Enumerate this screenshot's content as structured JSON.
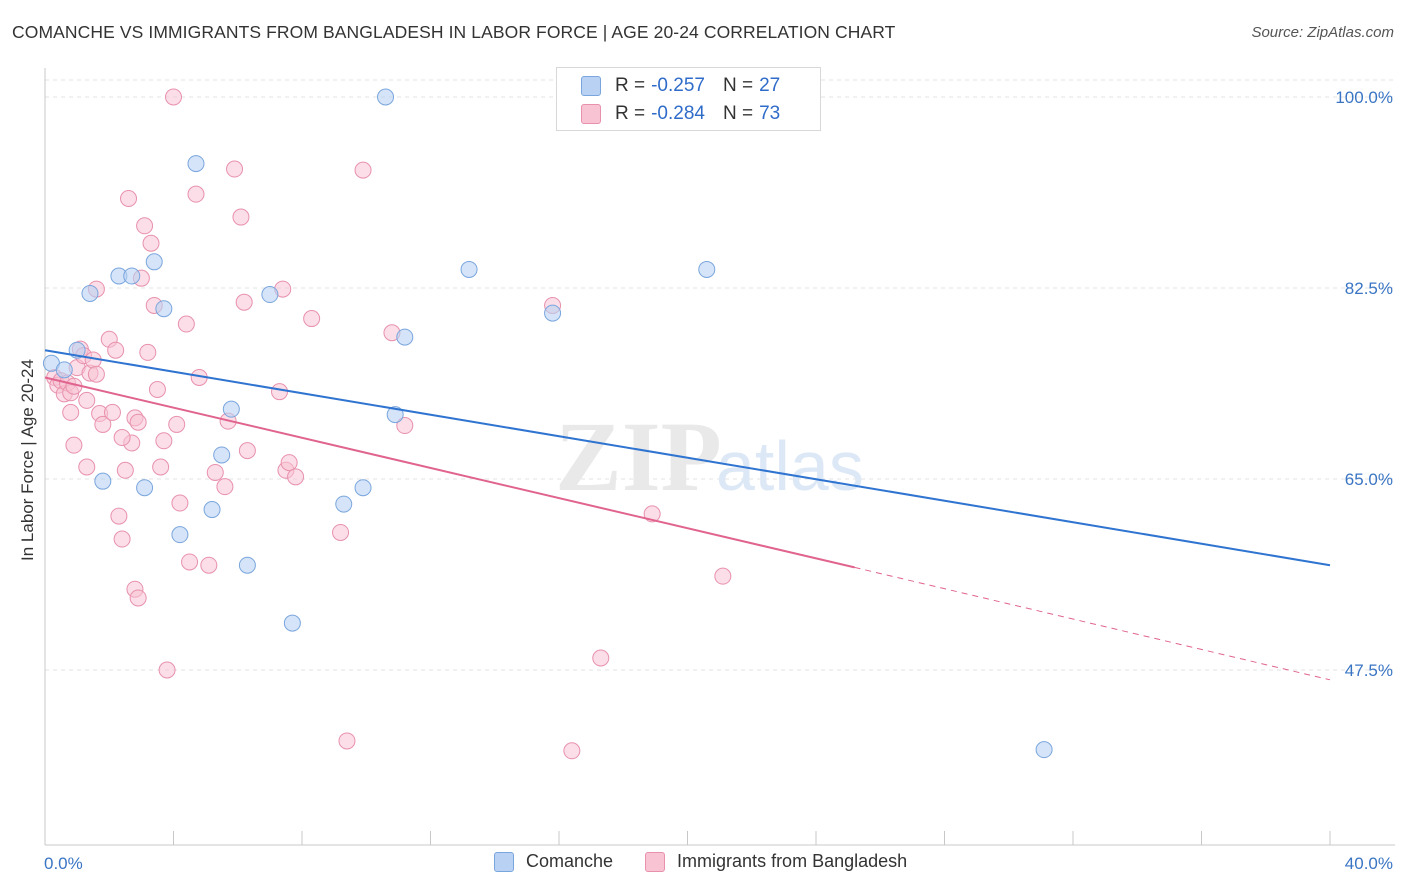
{
  "title": "COMANCHE VS IMMIGRANTS FROM BANGLADESH IN LABOR FORCE | AGE 20-24 CORRELATION CHART",
  "source": "Source: ZipAtlas.com",
  "watermark": {
    "zip": "ZIP",
    "atlas": "atlas"
  },
  "colors": {
    "blue_fill": "#b9d2f3",
    "blue_stroke": "#7aa6dd",
    "blue_line": "#2f74d0",
    "pink_fill": "#f8c3d3",
    "pink_stroke": "#e891ad",
    "pink_line": "#e0648e",
    "axis_text": "#3a75c4",
    "grid": "#e3e3e3"
  },
  "legend": {
    "rows": [
      {
        "series": "Comanche",
        "r_label": "R = ",
        "r_value": "-0.257",
        "n_label": "N = ",
        "n_value": "27"
      },
      {
        "series": "Immigrants from Bangladesh",
        "r_label": "R = ",
        "r_value": "-0.284",
        "n_label": "N = ",
        "n_value": "73"
      }
    ]
  },
  "bottom_legend": [
    "Comanche",
    "Immigrants from Bangladesh"
  ],
  "chart_data": {
    "type": "scatter",
    "title": "COMANCHE VS IMMIGRANTS FROM BANGLADESH IN LABOR FORCE | AGE 20-24 CORRELATION CHART",
    "xlabel": "",
    "ylabel": "In Labor Force | Age 20-24",
    "xlim": [
      0,
      40
    ],
    "ylim": [
      33.5,
      102.2
    ],
    "x_tick_labels": [
      "0.0%",
      "40.0%"
    ],
    "y_ticks": [
      47.5,
      65.0,
      82.5,
      100.0
    ],
    "y_tick_labels": [
      "47.5%",
      "65.0%",
      "82.5%",
      "100.0%"
    ],
    "grid": true,
    "series": [
      {
        "name": "Comanche",
        "r": -0.257,
        "n": 27,
        "trend": {
          "x0": 0,
          "y0": 76.8,
          "x1": 40,
          "y1": 57.1
        },
        "points": [
          [
            0.2,
            75.6
          ],
          [
            1.0,
            76.8
          ],
          [
            1.4,
            82.0
          ],
          [
            1.8,
            64.8
          ],
          [
            2.3,
            83.6
          ],
          [
            2.7,
            83.6
          ],
          [
            3.1,
            64.2
          ],
          [
            3.4,
            84.9
          ],
          [
            3.7,
            80.6
          ],
          [
            4.2,
            59.9
          ],
          [
            4.7,
            93.9
          ],
          [
            5.2,
            62.2
          ],
          [
            5.5,
            67.2
          ],
          [
            5.8,
            71.4
          ],
          [
            6.3,
            57.1
          ],
          [
            7.0,
            81.9
          ],
          [
            7.7,
            51.8
          ],
          [
            9.3,
            62.7
          ],
          [
            9.9,
            64.2
          ],
          [
            10.6,
            100.0
          ],
          [
            10.9,
            70.9
          ],
          [
            11.2,
            78.0
          ],
          [
            13.2,
            84.2
          ],
          [
            15.8,
            80.2
          ],
          [
            20.6,
            84.2
          ],
          [
            31.1,
            40.2
          ],
          [
            0.6,
            75.0
          ]
        ]
      },
      {
        "name": "Immigrants from Bangladesh",
        "r": -0.284,
        "n": 73,
        "trend": {
          "x0": 0,
          "y0": 74.3,
          "x1": 25.2,
          "y1": 56.9
        },
        "trend_dashed": {
          "x0": 25.2,
          "y0": 56.9,
          "x1": 40,
          "y1": 46.6
        },
        "points": [
          [
            0.3,
            74.3
          ],
          [
            0.4,
            73.6
          ],
          [
            0.5,
            74.0
          ],
          [
            0.6,
            72.8
          ],
          [
            0.7,
            73.8
          ],
          [
            0.8,
            72.9
          ],
          [
            0.8,
            71.1
          ],
          [
            0.9,
            68.1
          ],
          [
            1.0,
            75.2
          ],
          [
            1.1,
            76.9
          ],
          [
            1.2,
            76.3
          ],
          [
            1.3,
            66.1
          ],
          [
            1.3,
            72.2
          ],
          [
            1.4,
            74.7
          ],
          [
            1.5,
            75.9
          ],
          [
            1.6,
            82.4
          ],
          [
            1.7,
            71.0
          ],
          [
            1.8,
            70.0
          ],
          [
            2.0,
            77.8
          ],
          [
            2.1,
            71.1
          ],
          [
            2.2,
            76.8
          ],
          [
            2.3,
            61.6
          ],
          [
            2.4,
            59.5
          ],
          [
            2.5,
            65.8
          ],
          [
            2.6,
            90.7
          ],
          [
            2.7,
            68.3
          ],
          [
            2.8,
            70.6
          ],
          [
            2.9,
            70.2
          ],
          [
            2.8,
            54.9
          ],
          [
            2.9,
            54.1
          ],
          [
            3.0,
            83.4
          ],
          [
            3.1,
            88.2
          ],
          [
            3.2,
            76.6
          ],
          [
            3.3,
            86.6
          ],
          [
            3.4,
            80.9
          ],
          [
            3.5,
            73.2
          ],
          [
            3.6,
            66.1
          ],
          [
            3.7,
            68.5
          ],
          [
            3.8,
            47.5
          ],
          [
            4.0,
            100.0
          ],
          [
            4.1,
            70.0
          ],
          [
            4.2,
            62.8
          ],
          [
            4.4,
            79.2
          ],
          [
            4.5,
            57.4
          ],
          [
            4.7,
            91.1
          ],
          [
            4.8,
            74.3
          ],
          [
            5.1,
            57.1
          ],
          [
            5.3,
            65.6
          ],
          [
            5.6,
            64.3
          ],
          [
            5.7,
            70.3
          ],
          [
            5.9,
            93.4
          ],
          [
            6.1,
            89.0
          ],
          [
            6.2,
            81.2
          ],
          [
            6.3,
            67.6
          ],
          [
            7.3,
            73.0
          ],
          [
            7.4,
            82.4
          ],
          [
            7.5,
            65.8
          ],
          [
            7.6,
            66.5
          ],
          [
            7.8,
            65.2
          ],
          [
            8.3,
            79.7
          ],
          [
            9.2,
            60.1
          ],
          [
            9.4,
            41.0
          ],
          [
            9.9,
            93.3
          ],
          [
            10.8,
            78.4
          ],
          [
            11.2,
            69.9
          ],
          [
            15.8,
            80.9
          ],
          [
            16.4,
            40.1
          ],
          [
            17.3,
            48.6
          ],
          [
            18.9,
            61.8
          ],
          [
            21.1,
            56.1
          ],
          [
            2.4,
            68.8
          ],
          [
            1.6,
            74.6
          ],
          [
            0.9,
            73.5
          ]
        ]
      }
    ]
  }
}
